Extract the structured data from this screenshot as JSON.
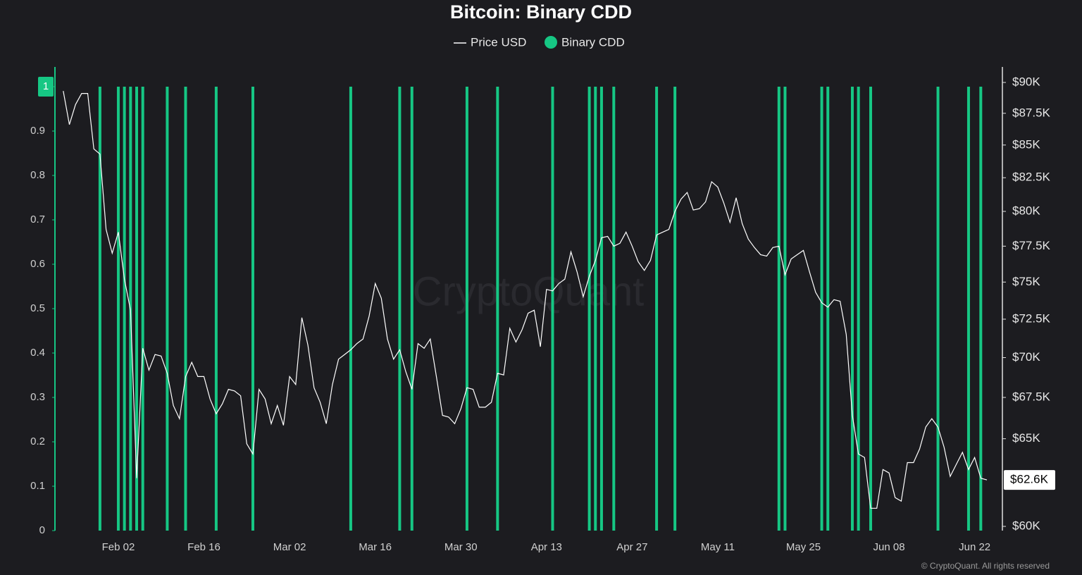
{
  "chart_data": {
    "type": "line_bar",
    "title": "Bitcoin: Binary CDD",
    "watermark": "CryptoQuant",
    "footer": "© CryptoQuant. All rights reserved",
    "x": [
      "Jan 24",
      "Jan 25",
      "Jan 26",
      "Jan 27",
      "Jan 28",
      "Jan 29",
      "Jan 30",
      "Jan 31",
      "Feb 01",
      "Feb 02",
      "Feb 03",
      "Feb 04",
      "Feb 05",
      "Feb 06",
      "Feb 07",
      "Feb 08",
      "Feb 09",
      "Feb 10",
      "Feb 11",
      "Feb 12",
      "Feb 13",
      "Feb 14",
      "Feb 15",
      "Feb 16",
      "Feb 17",
      "Feb 18",
      "Feb 19",
      "Feb 20",
      "Feb 21",
      "Feb 22",
      "Feb 23",
      "Feb 24",
      "Feb 25",
      "Feb 26",
      "Feb 27",
      "Feb 28",
      "Mar 01",
      "Mar 02",
      "Mar 03",
      "Mar 04",
      "Mar 05",
      "Mar 06",
      "Mar 07",
      "Mar 08",
      "Mar 09",
      "Mar 10",
      "Mar 11",
      "Mar 12",
      "Mar 13",
      "Mar 14",
      "Mar 15",
      "Mar 16",
      "Mar 17",
      "Mar 18",
      "Mar 19",
      "Mar 20",
      "Mar 21",
      "Mar 22",
      "Mar 23",
      "Mar 24",
      "Mar 25",
      "Mar 26",
      "Mar 27",
      "Mar 28",
      "Mar 29",
      "Mar 30",
      "Mar 31",
      "Apr 01",
      "Apr 02",
      "Apr 03",
      "Apr 04",
      "Apr 05",
      "Apr 06",
      "Apr 07",
      "Apr 08",
      "Apr 09",
      "Apr 10",
      "Apr 11",
      "Apr 12",
      "Apr 13",
      "Apr 14",
      "Apr 15",
      "Apr 16",
      "Apr 17",
      "Apr 18",
      "Apr 19",
      "Apr 20",
      "Apr 21",
      "Apr 22",
      "Apr 23",
      "Apr 24",
      "Apr 25",
      "Apr 26",
      "Apr 27",
      "Apr 28",
      "Apr 29",
      "Apr 30",
      "May 01",
      "May 02",
      "May 03",
      "May 04",
      "May 05",
      "May 06",
      "May 07",
      "May 08",
      "May 09",
      "May 10",
      "May 11",
      "May 12",
      "May 13",
      "May 14",
      "May 15",
      "May 16",
      "May 17",
      "May 18",
      "May 19",
      "May 20",
      "May 21",
      "May 22",
      "May 23",
      "May 24",
      "May 25",
      "May 26",
      "May 27",
      "May 28",
      "May 29",
      "May 30",
      "May 31",
      "Jun 01",
      "Jun 02",
      "Jun 03",
      "Jun 04",
      "Jun 05",
      "Jun 06",
      "Jun 07",
      "Jun 08",
      "Jun 09",
      "Jun 10",
      "Jun 11",
      "Jun 12",
      "Jun 13",
      "Jun 14",
      "Jun 15",
      "Jun 16",
      "Jun 17",
      "Jun 18",
      "Jun 19",
      "Jun 20",
      "Jun 21",
      "Jun 22",
      "Jun 23",
      "Jun 24"
    ],
    "xticks": [
      "Feb 02",
      "Feb 16",
      "Mar 02",
      "Mar 16",
      "Mar 30",
      "Apr 13",
      "Apr 27",
      "May 11",
      "May 25",
      "Jun 08",
      "Jun 22"
    ],
    "ylim": [
      0,
      1
    ],
    "yticks": [
      0,
      0.1,
      0.2,
      0.3,
      0.4,
      0.5,
      0.6,
      0.7,
      0.8,
      0.9,
      1
    ],
    "y2lim": [
      60000,
      90000
    ],
    "y2log": true,
    "y2ticks": [
      {
        "value": 60000,
        "label": "$60K"
      },
      {
        "value": 65000,
        "label": "$65K"
      },
      {
        "value": 67500,
        "label": "$67.5K"
      },
      {
        "value": 70000,
        "label": "$70K"
      },
      {
        "value": 72500,
        "label": "$72.5K"
      },
      {
        "value": 75000,
        "label": "$75K"
      },
      {
        "value": 77500,
        "label": "$77.5K"
      },
      {
        "value": 80000,
        "label": "$80K"
      },
      {
        "value": 82500,
        "label": "$82.5K"
      },
      {
        "value": 85000,
        "label": "$85K"
      },
      {
        "value": 87500,
        "label": "$87.5K"
      },
      {
        "value": 90000,
        "label": "$90K"
      }
    ],
    "series": [
      {
        "name": "Price USD",
        "color": "#ffffff",
        "axis": "y2",
        "kind": "line",
        "values": [
          89300,
          86600,
          88200,
          89100,
          89100,
          84700,
          84300,
          78700,
          77000,
          78500,
          75200,
          73100,
          62700,
          70600,
          69200,
          70200,
          70100,
          69000,
          67000,
          66200,
          68800,
          69700,
          68800,
          68800,
          67400,
          66500,
          67100,
          68000,
          67900,
          67600,
          64700,
          64100,
          68000,
          67400,
          65900,
          67000,
          65800,
          68800,
          68300,
          72600,
          70800,
          68100,
          67200,
          65900,
          68300,
          69900,
          70200,
          70500,
          70900,
          71200,
          72700,
          74900,
          73900,
          71200,
          69900,
          70500,
          69100,
          68000,
          70900,
          70600,
          71200,
          68800,
          66400,
          66300,
          65900,
          66800,
          68100,
          68000,
          66900,
          66900,
          67200,
          69000,
          68900,
          71900,
          71000,
          71800,
          72900,
          73100,
          70700,
          74500,
          74400,
          74900,
          75200,
          77100,
          75700,
          74000,
          75400,
          76500,
          78100,
          78200,
          77500,
          77700,
          78500,
          77500,
          76400,
          75800,
          76500,
          78300,
          78500,
          78700,
          80000,
          80900,
          81400,
          80100,
          80200,
          80700,
          82200,
          81800,
          80600,
          79200,
          81000,
          79100,
          78000,
          77400,
          76900,
          76800,
          77400,
          77500,
          75500,
          76600,
          76900,
          77200,
          75700,
          74300,
          73600,
          73300,
          73800,
          73700,
          71500,
          66400,
          64100,
          63900,
          61000,
          61000,
          63200,
          63000,
          61600,
          61400,
          63600,
          63600,
          64400,
          65700,
          66200,
          65700,
          64500,
          62800,
          63500,
          64200,
          63200,
          63900,
          62700,
          62600
        ],
        "last_value": {
          "value": 62600,
          "label": "$62.6K"
        }
      },
      {
        "name": "Binary CDD",
        "color": "#16c784",
        "axis": "y",
        "kind": "bar",
        "x": [
          "Jan 30",
          "Feb 02",
          "Feb 03",
          "Feb 04",
          "Feb 05",
          "Feb 06",
          "Feb 10",
          "Feb 13",
          "Feb 18",
          "Feb 24",
          "Mar 12",
          "Mar 20",
          "Mar 22",
          "Mar 31",
          "Apr 05",
          "Apr 14",
          "Apr 20",
          "Apr 21",
          "Apr 22",
          "Apr 24",
          "May 01",
          "May 04",
          "May 21",
          "May 22",
          "May 28",
          "May 29",
          "Jun 02",
          "Jun 03",
          "Jun 05",
          "Jun 16",
          "Jun 21",
          "Jun 23"
        ],
        "values": [
          1,
          1,
          1,
          1,
          1,
          1,
          1,
          1,
          1,
          1,
          1,
          1,
          1,
          1,
          1,
          1,
          1,
          1,
          1,
          1,
          1,
          1,
          1,
          1,
          1,
          1,
          1,
          1,
          1,
          1,
          1,
          1
        ]
      }
    ]
  }
}
